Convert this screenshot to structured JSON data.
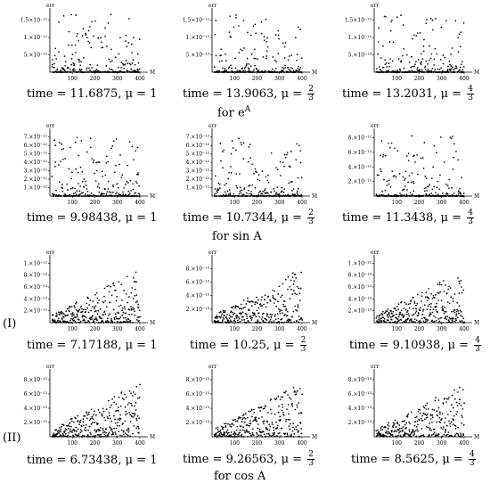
{
  "chart_data": [
    {
      "type": "scatter",
      "row": 0,
      "col": 0,
      "ylabel": "err",
      "xlabel": "M",
      "xticks": [
        "100",
        "200",
        "300",
        "400"
      ],
      "yticks": [
        "5.×10⁻¹³",
        "1.×10⁻¹²",
        "1.5×10⁻¹²"
      ],
      "ytick_values": [
        5e-13,
        1e-12,
        1.5e-12
      ],
      "xlim": [
        0,
        420
      ],
      "ylim": [
        0,
        1.75e-12
      ],
      "caption": {
        "time": "11.6875",
        "mu": "1"
      }
    },
    {
      "type": "scatter",
      "row": 0,
      "col": 1,
      "ylabel": "err",
      "xlabel": "M",
      "xticks": [
        "100",
        "200",
        "300",
        "400"
      ],
      "yticks": [
        "5.×10⁻¹³",
        "1.×10⁻¹²",
        "1.5×10⁻¹²"
      ],
      "ytick_values": [
        5e-13,
        1e-12,
        1.5e-12
      ],
      "xlim": [
        0,
        420
      ],
      "ylim": [
        0,
        1.75e-12
      ],
      "caption": {
        "time": "13.9063",
        "mu_num": "2",
        "mu_den": "3"
      }
    },
    {
      "type": "scatter",
      "row": 0,
      "col": 2,
      "ylabel": "err",
      "xlabel": "M",
      "xticks": [
        "100",
        "200",
        "300",
        "400"
      ],
      "yticks": [
        "5.×10⁻¹³",
        "1.×10⁻¹²",
        "1.5×10⁻¹²"
      ],
      "ytick_values": [
        5e-13,
        1e-12,
        1.5e-12
      ],
      "xlim": [
        0,
        420
      ],
      "ylim": [
        0,
        1.75e-12
      ],
      "caption": {
        "time": "13.2031",
        "mu_num": "4",
        "mu_den": "3"
      }
    },
    {
      "type": "scatter",
      "row": 1,
      "col": 0,
      "ylabel": "err",
      "xlabel": "M",
      "xticks": [
        "100",
        "200",
        "300",
        "400"
      ],
      "yticks": [
        "1.×10⁻¹²",
        "2.×10⁻¹²",
        "3.×10⁻¹²",
        "4.×10⁻¹²",
        "5.×10⁻¹²",
        "6.×10⁻¹²",
        "7.×10⁻¹²"
      ],
      "ytick_values": [
        1e-12,
        2e-12,
        3e-12,
        4e-12,
        5e-12,
        6e-12,
        7e-12
      ],
      "xlim": [
        0,
        420
      ],
      "ylim": [
        0,
        7.6e-12
      ],
      "caption": {
        "time": "9.98438",
        "mu": "1"
      }
    },
    {
      "type": "scatter",
      "row": 1,
      "col": 1,
      "ylabel": "err",
      "xlabel": "M",
      "xticks": [
        "100",
        "200",
        "300",
        "400"
      ],
      "yticks": [
        "1.×10⁻¹²",
        "2.×10⁻¹²",
        "3.×10⁻¹²",
        "4.×10⁻¹²",
        "5.×10⁻¹²",
        "6.×10⁻¹²",
        "7.×10⁻¹²"
      ],
      "ytick_values": [
        1e-12,
        2e-12,
        3e-12,
        4e-12,
        5e-12,
        6e-12,
        7e-12
      ],
      "xlim": [
        0,
        420
      ],
      "ylim": [
        0,
        7.6e-12
      ],
      "caption": {
        "time": "10.7344",
        "mu_num": "2",
        "mu_den": "3"
      }
    },
    {
      "type": "scatter",
      "row": 1,
      "col": 2,
      "ylabel": "err",
      "xlabel": "M",
      "xticks": [
        "100",
        "200",
        "300",
        "400"
      ],
      "yticks": [
        "2.×10⁻¹²",
        "4.×10⁻¹²",
        "6.×10⁻¹²",
        "8.×10⁻¹²"
      ],
      "ytick_values": [
        2e-12,
        4e-12,
        6e-12,
        8e-12
      ],
      "xlim": [
        0,
        420
      ],
      "ylim": [
        0,
        8.8e-12
      ],
      "caption": {
        "time": "11.3438",
        "mu_num": "4",
        "mu_den": "3"
      }
    },
    {
      "type": "scatter",
      "row": 2,
      "col": 0,
      "ylabel": "err",
      "xlabel": "M",
      "xticks": [
        "100",
        "200",
        "300",
        "400"
      ],
      "yticks": [
        "2.×10⁻¹³",
        "4.×10⁻¹³",
        "6.×10⁻¹³",
        "8.×10⁻¹³",
        "1.×10⁻¹²"
      ],
      "ytick_values": [
        2e-13,
        4e-13,
        6e-13,
        8e-13,
        1e-12
      ],
      "xlim": [
        0,
        420
      ],
      "ylim": [
        0,
        1.08e-12
      ],
      "caption": {
        "time": "7.17188",
        "mu": "1"
      }
    },
    {
      "type": "scatter",
      "row": 2,
      "col": 1,
      "ylabel": "err",
      "xlabel": "M",
      "xticks": [
        "100",
        "200",
        "300",
        "400"
      ],
      "yticks": [
        "2.×10⁻¹³",
        "4.×10⁻¹³",
        "6.×10⁻¹³",
        "8.×10⁻¹³"
      ],
      "ytick_values": [
        2e-13,
        4e-13,
        6e-13,
        8e-13
      ],
      "xlim": [
        0,
        420
      ],
      "ylim": [
        0,
        9.5e-13
      ],
      "caption": {
        "time": "10.25",
        "mu_num": "2",
        "mu_den": "3"
      }
    },
    {
      "type": "scatter",
      "row": 2,
      "col": 2,
      "ylabel": "err",
      "xlabel": "M",
      "xticks": [
        "100",
        "200",
        "300",
        "400"
      ],
      "yticks": [
        "2.×10⁻¹³",
        "4.×10⁻¹³",
        "6.×10⁻¹³",
        "8.×10⁻¹³",
        "1.×10⁻¹²"
      ],
      "ytick_values": [
        2e-13,
        4e-13,
        6e-13,
        8e-13,
        1e-12
      ],
      "xlim": [
        0,
        420
      ],
      "ylim": [
        0,
        1.08e-12
      ],
      "caption": {
        "time": "9.10938",
        "mu_num": "4",
        "mu_den": "3"
      }
    },
    {
      "type": "scatter",
      "row": 3,
      "col": 0,
      "ylabel": "err",
      "xlabel": "M",
      "xticks": [
        "100",
        "200",
        "300",
        "400"
      ],
      "yticks": [
        "2.×10⁻¹³",
        "4.×10⁻¹³",
        "6.×10⁻¹³",
        "8.×10⁻¹³"
      ],
      "ytick_values": [
        2e-13,
        4e-13,
        6e-13,
        8e-13
      ],
      "xlim": [
        0,
        420
      ],
      "ylim": [
        0,
        9e-13
      ],
      "caption": {
        "time": "6.73438",
        "mu": "1"
      }
    },
    {
      "type": "scatter",
      "row": 3,
      "col": 1,
      "ylabel": "err",
      "xlabel": "M",
      "xticks": [
        "100",
        "200",
        "300",
        "400"
      ],
      "yticks": [
        "2.×10⁻¹³",
        "4.×10⁻¹³",
        "6.×10⁻¹³",
        "8.×10⁻¹³"
      ],
      "ytick_values": [
        2e-13,
        4e-13,
        6e-13,
        8e-13
      ],
      "xlim": [
        0,
        420
      ],
      "ylim": [
        0,
        9e-13
      ],
      "caption": {
        "time": "9.26563",
        "mu_num": "2",
        "mu_den": "3"
      }
    },
    {
      "type": "scatter",
      "row": 3,
      "col": 2,
      "ylabel": "err",
      "xlabel": "M",
      "xticks": [
        "100",
        "200",
        "300",
        "400"
      ],
      "yticks": [
        "2.×10⁻¹³",
        "4.×10⁻¹³",
        "6.×10⁻¹³",
        "8.×10⁻¹³"
      ],
      "ytick_values": [
        2e-13,
        4e-13,
        6e-13,
        8e-13
      ],
      "xlim": [
        0,
        420
      ],
      "ylim": [
        0,
        9e-13
      ],
      "caption": {
        "time": "8.5625",
        "mu_num": "4",
        "mu_den": "3"
      }
    }
  ],
  "group_labels": {
    "exp": "for e^A",
    "exp_base": "for e",
    "exp_sup": "A",
    "sin": "for  sin A",
    "cos": "for  cos A"
  },
  "row_markers": {
    "I": "(I)",
    "II": "(II)"
  },
  "caption_text": {
    "time_prefix": "time = ",
    "mu_prefix": ", μ = "
  }
}
